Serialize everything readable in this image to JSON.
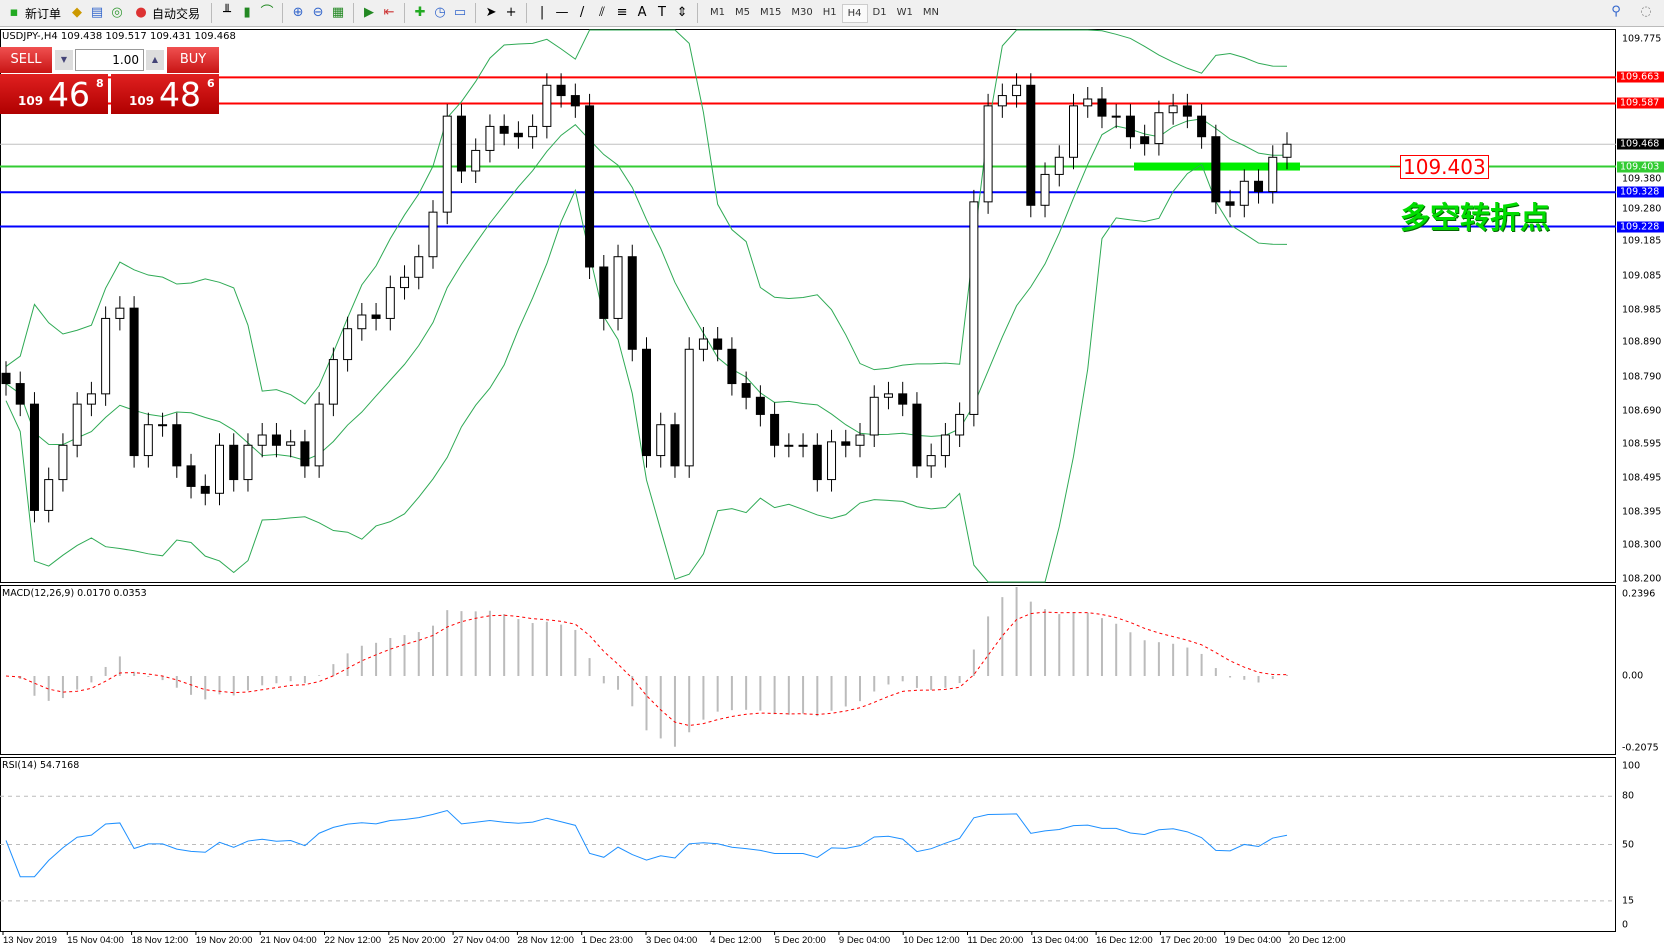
{
  "toolbar": {
    "new_order": "新订单",
    "auto_trading": "自动交易",
    "icons": [
      "new-order-icon",
      "history-center-icon",
      "global-variables-icon",
      "signals-icon",
      "auto-trading-icon",
      "bar-chart-icon",
      "candlestick-icon",
      "line-chart-icon",
      "zoom-in-icon",
      "zoom-out-icon",
      "tile-windows-icon",
      "autoscroll-icon",
      "chart-shift-icon",
      "new-chart-icon",
      "periods-icon",
      "templates-icon",
      "cursor-icon",
      "crosshair-icon",
      "vertical-line-icon",
      "horizontal-line-icon",
      "trendline-icon",
      "equidistant-channel-icon",
      "fibonacci-icon",
      "text-icon",
      "text-label-icon",
      "arrows-icon"
    ],
    "timeframes": [
      "M1",
      "M5",
      "M15",
      "M30",
      "H1",
      "H4",
      "D1",
      "W1",
      "MN"
    ],
    "active_timeframe": "H4"
  },
  "symbol_info": "USDJPY-,H4  109.438 109.517 109.431 109.468",
  "trade_panel": {
    "sell": "SELL",
    "buy": "BUY",
    "lot": "1.00",
    "sell_big": "109",
    "sell_main": "46",
    "sell_sup": "8",
    "buy_big": "109",
    "buy_main": "48",
    "buy_sup": "6"
  },
  "price_axis": [
    "109.775",
    "109.380",
    "109.280",
    "109.185",
    "109.085",
    "108.985",
    "108.890",
    "108.790",
    "108.690",
    "108.595",
    "108.495",
    "108.395",
    "108.300",
    "108.200"
  ],
  "levels": [
    {
      "price": "109.663",
      "color": "#ff0000"
    },
    {
      "price": "109.587",
      "color": "#ff0000"
    },
    {
      "price": "109.468",
      "color": "#000000"
    },
    {
      "price": "109.403",
      "color": "#33cc33"
    },
    {
      "price": "109.328",
      "color": "#0000ff"
    },
    {
      "price": "109.228",
      "color": "#0000ff"
    }
  ],
  "annotation": {
    "price_label": "109.403",
    "text": "多空转折点"
  },
  "macd": {
    "label": "MACD(12,26,9) 0.0170 0.0353",
    "axis": [
      "0.2396",
      "0.00",
      "-0.2075"
    ]
  },
  "rsi": {
    "label": "RSI(14) 54.7168",
    "axis": [
      "100",
      "80",
      "50",
      "15",
      "0"
    ]
  },
  "time_axis": [
    "13 Nov 2019",
    "15 Nov 04:00",
    "18 Nov 12:00",
    "19 Nov 20:00",
    "21 Nov 04:00",
    "22 Nov 12:00",
    "25 Nov 20:00",
    "27 Nov 04:00",
    "28 Nov 12:00",
    "1 Dec 23:00",
    "3 Dec 04:00",
    "4 Dec 12:00",
    "5 Dec 20:00",
    "9 Dec 04:00",
    "10 Dec 12:00",
    "11 Dec 20:00",
    "13 Dec 04:00",
    "16 Dec 12:00",
    "17 Dec 20:00",
    "19 Dec 04:00",
    "20 Dec 12:00"
  ],
  "chart_data": {
    "type": "candlestick",
    "symbol": "USDJPY-",
    "timeframe": "H4",
    "ylim": [
      108.2,
      109.775
    ],
    "closes": [
      108.77,
      108.71,
      108.4,
      108.49,
      108.59,
      108.71,
      108.74,
      108.96,
      108.99,
      108.56,
      108.65,
      108.65,
      108.53,
      108.47,
      108.45,
      108.59,
      108.49,
      108.59,
      108.62,
      108.59,
      108.6,
      108.53,
      108.71,
      108.84,
      108.93,
      108.97,
      108.96,
      109.05,
      109.08,
      109.14,
      109.27,
      109.55,
      109.39,
      109.45,
      109.52,
      109.5,
      109.49,
      109.52,
      109.64,
      109.61,
      109.58,
      109.11,
      108.96,
      109.14,
      108.87,
      108.56,
      108.65,
      108.53,
      108.87,
      108.9,
      108.87,
      108.77,
      108.73,
      108.68,
      108.59,
      108.59,
      108.59,
      108.49,
      108.6,
      108.59,
      108.62,
      108.73,
      108.74,
      108.71,
      108.53,
      108.56,
      108.62,
      108.68,
      109.3,
      109.58,
      109.61,
      109.64,
      109.29,
      109.38,
      109.43,
      109.58,
      109.6,
      109.55,
      109.55,
      109.49,
      109.47,
      109.56,
      109.58,
      109.55,
      109.49,
      109.3,
      109.29,
      109.36,
      109.33,
      109.43,
      109.468
    ]
  }
}
